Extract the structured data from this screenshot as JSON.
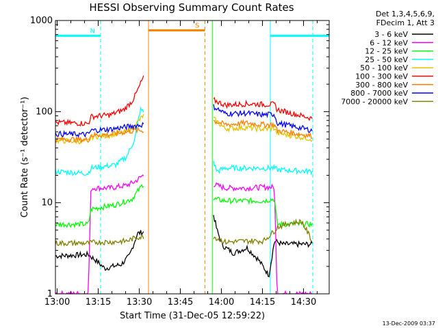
{
  "chart_data": {
    "type": "line",
    "title": "HESSI Observing Summary Count Rates",
    "xlabel": "Start Time (31-Dec-05 12:59:22)",
    "ylabel": "Count Rate (s⁻¹ detector⁻¹)",
    "x_unit": "minutes",
    "xlim": [
      0,
      100
    ],
    "ylim": [
      1,
      1000
    ],
    "yscale": "log",
    "grid": false,
    "x_ticks": [
      {
        "x": 0.633,
        "label": "13:00"
      },
      {
        "x": 15.633,
        "label": "13:15"
      },
      {
        "x": 30.633,
        "label": "13:30"
      },
      {
        "x": 45.633,
        "label": "13:45"
      },
      {
        "x": 60.633,
        "label": "14:00"
      },
      {
        "x": 75.633,
        "label": "14:15"
      },
      {
        "x": 90.633,
        "label": "14:30"
      }
    ],
    "y_ticks": [
      {
        "y": 1,
        "label": "1"
      },
      {
        "y": 10,
        "label": "10"
      },
      {
        "y": 100,
        "label": "100"
      },
      {
        "y": 1000,
        "label": "1000"
      }
    ],
    "legend": {
      "position": "right",
      "header": [
        "Det 1,3,4,5,6,9,",
        "FDecim 1, Att 3"
      ]
    },
    "series": [
      {
        "name": "3 - 6 keV",
        "color": "#000000",
        "points": [
          [
            0,
            2.6
          ],
          [
            12,
            2.7
          ],
          [
            15,
            2.3
          ],
          [
            18,
            1.9
          ],
          [
            21,
            2.0
          ],
          [
            24,
            2.1
          ],
          [
            27,
            2.6
          ],
          [
            30,
            4.6
          ],
          [
            32.5,
            4.8
          ],
          [
            57.5,
            8.0
          ],
          [
            59,
            5.0
          ],
          [
            61,
            3.4
          ],
          [
            65,
            2.8
          ],
          [
            70,
            3.2
          ],
          [
            74,
            2.4
          ],
          [
            78,
            1.6
          ],
          [
            80,
            3.8
          ],
          [
            83,
            3.5
          ],
          [
            86,
            3.5
          ],
          [
            89,
            3.5
          ],
          [
            94,
            3.5
          ]
        ]
      },
      {
        "name": "6 - 12 keV",
        "color": "#ff00ff",
        "points": [
          [
            0,
            1.0
          ],
          [
            12,
            1.0
          ],
          [
            13,
            14.5
          ],
          [
            20,
            14.5
          ],
          [
            26,
            15.5
          ],
          [
            29,
            17
          ],
          [
            32,
            20
          ],
          [
            57.5,
            16
          ],
          [
            62,
            14.5
          ],
          [
            70,
            14.5
          ],
          [
            76,
            14.8
          ],
          [
            80,
            14.8
          ],
          [
            81,
            1.0
          ],
          [
            94,
            1.0
          ]
        ]
      },
      {
        "name": "12 - 25 keV",
        "color": "#00ff00",
        "points": [
          [
            0,
            5.8
          ],
          [
            12,
            5.8
          ],
          [
            13,
            8.5
          ],
          [
            22,
            9.5
          ],
          [
            28,
            11
          ],
          [
            32,
            16
          ],
          [
            57.5,
            11
          ],
          [
            62,
            10.5
          ],
          [
            70,
            10.5
          ],
          [
            76,
            10.5
          ],
          [
            80,
            11
          ],
          [
            81,
            5.8
          ],
          [
            94,
            5.8
          ]
        ]
      },
      {
        "name": "25 - 50 keV",
        "color": "#00ffff",
        "points": [
          [
            0,
            22
          ],
          [
            12,
            21
          ],
          [
            13,
            24
          ],
          [
            22,
            26
          ],
          [
            26,
            32
          ],
          [
            29,
            50
          ],
          [
            31,
            105
          ],
          [
            57.5,
            30
          ],
          [
            59,
            22
          ],
          [
            62,
            24
          ],
          [
            70,
            24
          ],
          [
            76,
            24
          ],
          [
            80,
            24
          ],
          [
            81,
            23
          ],
          [
            94,
            22
          ]
        ]
      },
      {
        "name": "50 - 100 keV",
        "color": "#e6c200",
        "points": [
          [
            0,
            48
          ],
          [
            12,
            47
          ],
          [
            13,
            53
          ],
          [
            20,
            55
          ],
          [
            26,
            60
          ],
          [
            29,
            70
          ],
          [
            32,
            90
          ],
          [
            57.5,
            85
          ],
          [
            62,
            65
          ],
          [
            70,
            67
          ],
          [
            76,
            64
          ],
          [
            80,
            66
          ],
          [
            81,
            58
          ],
          [
            94,
            50
          ]
        ]
      },
      {
        "name": "100 - 300 keV",
        "color": "#ff0000",
        "points": [
          [
            0,
            76
          ],
          [
            12,
            74
          ],
          [
            13,
            88
          ],
          [
            20,
            92
          ],
          [
            25,
            105
          ],
          [
            28,
            130
          ],
          [
            30,
            170
          ],
          [
            32,
            235
          ],
          [
            57.5,
            135
          ],
          [
            62,
            118
          ],
          [
            70,
            122
          ],
          [
            76,
            120
          ],
          [
            80,
            120
          ],
          [
            81,
            105
          ],
          [
            94,
            84
          ]
        ]
      },
      {
        "name": "300 - 800 keV",
        "color": "#ff8000",
        "points": [
          [
            0,
            50
          ],
          [
            12,
            49
          ],
          [
            13,
            55
          ],
          [
            20,
            56
          ],
          [
            26,
            60
          ],
          [
            29,
            62
          ],
          [
            32,
            62
          ],
          [
            57.5,
            80
          ],
          [
            62,
            72
          ],
          [
            70,
            75
          ],
          [
            76,
            72
          ],
          [
            80,
            72
          ],
          [
            81,
            62
          ],
          [
            94,
            54
          ]
        ]
      },
      {
        "name": "800 - 7000 keV",
        "color": "#0000ff",
        "points": [
          [
            0,
            57
          ],
          [
            12,
            56
          ],
          [
            13,
            62
          ],
          [
            20,
            64
          ],
          [
            26,
            68
          ],
          [
            29,
            70
          ],
          [
            32,
            72
          ],
          [
            57.5,
            115
          ],
          [
            62,
            95
          ],
          [
            70,
            96
          ],
          [
            76,
            92
          ],
          [
            80,
            94
          ],
          [
            81,
            75
          ],
          [
            94,
            62
          ]
        ]
      },
      {
        "name": "7000 - 20000 keV",
        "color": "#808000",
        "points": [
          [
            0,
            3.6
          ],
          [
            12,
            3.6
          ],
          [
            15,
            3.7
          ],
          [
            20,
            3.7
          ],
          [
            26,
            3.8
          ],
          [
            30,
            4.2
          ],
          [
            32,
            4.2
          ],
          [
            57.5,
            4.3
          ],
          [
            62,
            3.7
          ],
          [
            70,
            3.8
          ],
          [
            76,
            3.8
          ],
          [
            80,
            4.9
          ],
          [
            81,
            5.4
          ],
          [
            86,
            6
          ],
          [
            90,
            6.2
          ],
          [
            94,
            3.7
          ]
        ]
      }
    ],
    "annotations": [
      {
        "type": "span",
        "label": "N",
        "color": "#00ffff",
        "x_start": 0,
        "x_end": 16.5,
        "y": 680
      },
      {
        "type": "span",
        "label": "",
        "color": "#00ffff",
        "x_start": 78.5,
        "x_end": 94,
        "y": 680
      },
      {
        "type": "span",
        "label": "",
        "color": "#00ffff",
        "x_start": 94,
        "x_end": 100,
        "y": 680
      },
      {
        "type": "span",
        "label": "S",
        "color": "#ff8000",
        "x_start": 34,
        "x_end": 54.6,
        "y": 780
      },
      {
        "type": "vline",
        "x": 0,
        "color": "#00ffff",
        "style": "solid"
      },
      {
        "type": "vline",
        "x": 16.5,
        "color": "#00ffff",
        "style": "dashed"
      },
      {
        "type": "vline",
        "x": 78.5,
        "color": "#00ffff",
        "style": "solid"
      },
      {
        "type": "vline",
        "x": 94,
        "color": "#00ffff",
        "style": "dashed"
      },
      {
        "type": "vline",
        "x": 34,
        "color": "#ff8000",
        "style": "solid"
      },
      {
        "type": "vline",
        "x": 54.6,
        "color": "#ff8000",
        "style": "dashed"
      },
      {
        "type": "vline",
        "x": 57.3,
        "color": "#00ff00",
        "style": "solid"
      }
    ]
  },
  "footer": {
    "timestamp": "13-Dec-2009 03:37"
  }
}
